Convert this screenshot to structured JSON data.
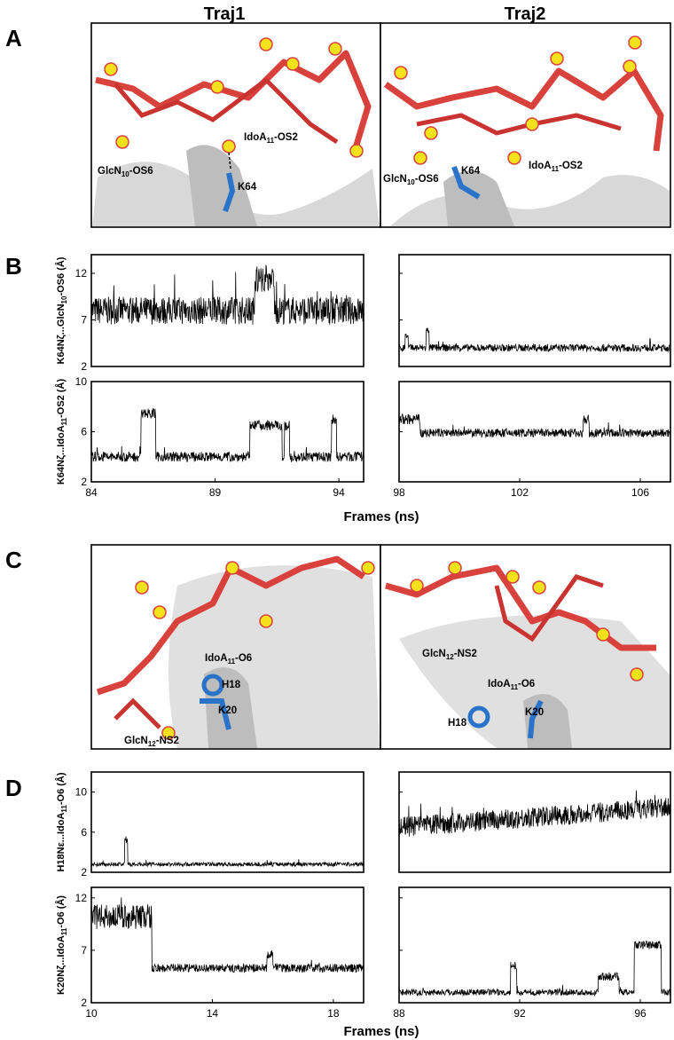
{
  "column_titles": [
    "Traj1",
    "Traj2"
  ],
  "panel_letters": [
    "A",
    "B",
    "C",
    "D"
  ],
  "x_axis_label": "Frames (ns)",
  "molecule_panels": [
    {
      "panel": "A",
      "left_labels": [
        {
          "base": "GlcN",
          "sub": "10",
          "suffix": "-OS6"
        },
        {
          "base": "IdoA",
          "sub": "11",
          "suffix": "-OS2"
        },
        {
          "base": "K64",
          "sub": "",
          "suffix": ""
        }
      ],
      "right_labels": [
        {
          "base": "GlcN",
          "sub": "10",
          "suffix": "-OS6"
        },
        {
          "base": "K64",
          "sub": "",
          "suffix": ""
        },
        {
          "base": "IdoA",
          "sub": "11",
          "suffix": "-OS2"
        }
      ]
    },
    {
      "panel": "C",
      "left_labels": [
        {
          "base": "IdoA",
          "sub": "11",
          "suffix": "-O6"
        },
        {
          "base": "H18",
          "sub": "",
          "suffix": ""
        },
        {
          "base": "K20",
          "sub": "",
          "suffix": ""
        },
        {
          "base": "GlcN",
          "sub": "12",
          "suffix": "-NS2"
        }
      ],
      "right_labels": [
        {
          "base": "GlcN",
          "sub": "12",
          "suffix": "-NS2"
        },
        {
          "base": "IdoA",
          "sub": "11",
          "suffix": "-O6"
        },
        {
          "base": "H18",
          "sub": "",
          "suffix": ""
        },
        {
          "base": "K20",
          "sub": "",
          "suffix": ""
        }
      ]
    }
  ],
  "chart_data": [
    {
      "panel": "B",
      "type": "line",
      "ylabel_parts": {
        "a": "K64Nζ...GlcN",
        "sub": "10",
        "b": "-OS6 (Å)"
      },
      "ylim": [
        2,
        14
      ],
      "yticks": [
        2,
        7,
        12
      ],
      "left": {
        "xlim": [
          84,
          95
        ],
        "xticks": [],
        "trace": {
          "kind": "noise",
          "base": 8,
          "amp": 1.5,
          "events": [
            {
              "x0": 90.6,
              "x1": 91.4,
              "v": 11.5
            }
          ]
        }
      },
      "right": {
        "xlim": [
          98,
          107
        ],
        "xticks": [],
        "trace": {
          "kind": "noise",
          "base": 4,
          "amp": 0.4,
          "events": [
            {
              "x0": 98.2,
              "x1": 98.3,
              "v": 5.5
            },
            {
              "x0": 98.9,
              "x1": 99.0,
              "v": 5.8
            }
          ]
        }
      }
    },
    {
      "panel": "B",
      "type": "line",
      "ylabel_parts": {
        "a": "K64Nζ...IdoA",
        "sub": "11",
        "b": "-OS2 (Å)"
      },
      "ylim": [
        2,
        10
      ],
      "yticks": [
        2,
        6,
        10
      ],
      "left": {
        "xlim": [
          84,
          95
        ],
        "xticks": [
          84,
          89,
          94
        ],
        "trace": {
          "kind": "noise",
          "base": 4,
          "amp": 0.4,
          "events": [
            {
              "x0": 86.0,
              "x1": 86.6,
              "v": 7.5
            },
            {
              "x0": 90.4,
              "x1": 91.7,
              "v": 6.5
            },
            {
              "x0": 93.7,
              "x1": 93.9,
              "v": 7.0
            },
            {
              "x0": 91.8,
              "x1": 92.0,
              "v": 6.5
            }
          ]
        }
      },
      "right": {
        "xlim": [
          98,
          107
        ],
        "xticks": [
          98,
          102,
          106
        ],
        "trace": {
          "kind": "noise",
          "base": 5.9,
          "amp": 0.35,
          "events": [
            {
              "x0": 98.0,
              "x1": 98.7,
              "v": 7.0
            },
            {
              "x0": 104.1,
              "x1": 104.3,
              "v": 7.0
            }
          ]
        }
      }
    },
    {
      "panel": "D",
      "type": "line",
      "ylabel_parts": {
        "a": "H18Nε...IdoA",
        "sub": "11",
        "b": "-O6 (Å)"
      },
      "ylim": [
        2,
        12
      ],
      "yticks": [
        2,
        6,
        10
      ],
      "left": {
        "xlim": [
          10,
          19
        ],
        "xticks": [],
        "trace": {
          "kind": "noise",
          "base": 2.8,
          "amp": 0.2,
          "events": [
            {
              "x0": 11.1,
              "x1": 11.2,
              "v": 5.3
            }
          ]
        }
      },
      "right": {
        "xlim": [
          88,
          97
        ],
        "xticks": [],
        "trace": {
          "kind": "ramp",
          "base0": 6.5,
          "base1": 8.5,
          "amp": 1.0,
          "events": []
        }
      }
    },
    {
      "panel": "D",
      "type": "line",
      "ylabel_parts": {
        "a": "K20Nζ...IdoA",
        "sub": "11",
        "b": "-O6 (Å)"
      },
      "ylim": [
        2,
        13
      ],
      "yticks": [
        2,
        7,
        12
      ],
      "left": {
        "xlim": [
          10,
          19
        ],
        "xticks": [
          10,
          14,
          18
        ],
        "trace": {
          "kind": "step",
          "before": 10.2,
          "after": 5.3,
          "xs": 12.0,
          "amp": 0.9,
          "events": [
            {
              "x0": 15.8,
              "x1": 16.0,
              "v": 6.6
            }
          ]
        }
      },
      "right": {
        "xlim": [
          88,
          97
        ],
        "xticks": [
          88,
          92,
          96
        ],
        "trace": {
          "kind": "noise",
          "base": 3.0,
          "amp": 0.3,
          "events": [
            {
              "x0": 91.7,
              "x1": 91.9,
              "v": 5.5
            },
            {
              "x0": 94.6,
              "x1": 95.3,
              "v": 4.5
            },
            {
              "x0": 95.8,
              "x1": 96.7,
              "v": 7.5
            }
          ]
        }
      }
    }
  ]
}
